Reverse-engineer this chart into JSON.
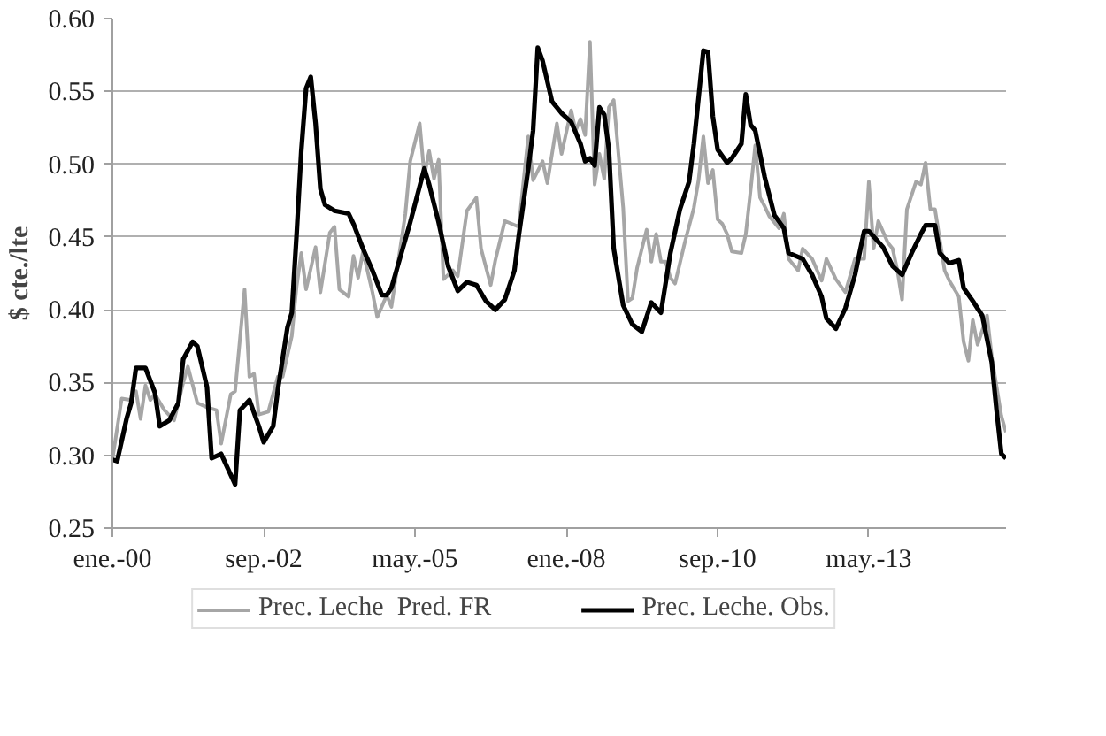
{
  "chart_data": {
    "type": "line",
    "ylabel": "$ cte./lte",
    "xlim": [
      "2000-01",
      "2015-10"
    ],
    "xticks": [
      {
        "value": "2000-01",
        "label": "ene.-00"
      },
      {
        "value": "2002-09",
        "label": "sep.-02"
      },
      {
        "value": "2005-05",
        "label": "may.-05"
      },
      {
        "value": "2008-01",
        "label": "ene.-08"
      },
      {
        "value": "2010-09",
        "label": "sep.-10"
      },
      {
        "value": "2013-05",
        "label": "may.-13"
      }
    ],
    "ylim": [
      0.25,
      0.6
    ],
    "yticks": [
      {
        "value": 0.25,
        "label": "0.25"
      },
      {
        "value": 0.3,
        "label": "0.30"
      },
      {
        "value": 0.35,
        "label": "0.35"
      },
      {
        "value": 0.4,
        "label": "0.40"
      },
      {
        "value": 0.45,
        "label": "0.45"
      },
      {
        "value": 0.5,
        "label": "0.50"
      },
      {
        "value": 0.55,
        "label": "0.55"
      },
      {
        "value": 0.6,
        "label": "0.60"
      }
    ],
    "grid": "y",
    "legend": "bottom",
    "series": [
      {
        "name": "Prec. Leche  Pred. FR",
        "color": "#a6a6a6",
        "x": [
          "2000-01",
          "2000-03",
          "2000-05",
          "2000-06",
          "2000-07",
          "2000-08",
          "2000-09",
          "2000-10",
          "2000-12",
          "2001-02",
          "2001-04",
          "2001-05",
          "2001-07",
          "2001-09",
          "2001-11",
          "2001-12",
          "2002-02",
          "2002-03",
          "2002-05",
          "2002-06",
          "2002-07",
          "2002-08",
          "2002-10",
          "2002-12",
          "2003-01",
          "2003-03",
          "2003-04",
          "2003-05",
          "2003-06",
          "2003-08",
          "2003-09",
          "2003-11",
          "2003-12",
          "2004-01",
          "2004-03",
          "2004-04",
          "2004-05",
          "2004-06",
          "2004-08",
          "2004-09",
          "2004-11",
          "2004-12",
          "2005-03",
          "2005-04",
          "2005-06",
          "2005-07",
          "2005-08",
          "2005-09",
          "2005-10",
          "2005-11",
          "2006-01",
          "2006-02",
          "2006-04",
          "2006-06",
          "2006-07",
          "2006-09",
          "2006-10",
          "2006-12",
          "2007-03",
          "2007-04",
          "2007-05",
          "2007-06",
          "2007-08",
          "2007-09",
          "2007-11",
          "2007-12",
          "2008-02",
          "2008-03",
          "2008-04",
          "2008-05",
          "2008-06",
          "2008-07",
          "2008-08",
          "2008-09",
          "2008-10",
          "2008-11",
          "2009-01",
          "2009-02",
          "2009-03",
          "2009-04",
          "2009-06",
          "2009-07",
          "2009-08",
          "2009-09",
          "2009-10",
          "2009-11",
          "2009-12",
          "2010-02",
          "2010-04",
          "2010-05",
          "2010-06",
          "2010-07",
          "2010-08",
          "2010-09",
          "2010-10",
          "2010-11",
          "2010-12",
          "2011-02",
          "2011-03",
          "2011-04",
          "2011-05",
          "2011-06",
          "2011-07",
          "2011-08",
          "2011-10",
          "2011-11",
          "2011-12",
          "2012-02",
          "2012-03",
          "2012-05",
          "2012-07",
          "2012-08",
          "2012-10",
          "2012-12",
          "2013-02",
          "2013-04",
          "2013-05",
          "2013-06",
          "2013-07",
          "2013-09",
          "2013-10",
          "2013-11",
          "2013-12",
          "2014-01",
          "2014-03",
          "2014-04",
          "2014-05",
          "2014-06",
          "2014-07",
          "2014-09",
          "2014-10",
          "2014-12",
          "2015-01",
          "2015-02",
          "2015-03",
          "2015-04",
          "2015-06",
          "2015-07",
          "2015-09",
          "2015-10"
        ],
        "values": [
          0.297,
          0.339,
          0.338,
          0.344,
          0.325,
          0.348,
          0.338,
          0.342,
          0.331,
          0.324,
          0.35,
          0.361,
          0.336,
          0.333,
          0.331,
          0.308,
          0.342,
          0.344,
          0.414,
          0.354,
          0.356,
          0.328,
          0.33,
          0.354,
          0.354,
          0.382,
          0.416,
          0.439,
          0.414,
          0.443,
          0.412,
          0.453,
          0.457,
          0.414,
          0.409,
          0.437,
          0.422,
          0.44,
          0.412,
          0.395,
          0.41,
          0.402,
          0.466,
          0.502,
          0.528,
          0.492,
          0.509,
          0.49,
          0.503,
          0.421,
          0.427,
          0.423,
          0.468,
          0.477,
          0.442,
          0.417,
          0.434,
          0.461,
          0.457,
          0.489,
          0.519,
          0.489,
          0.502,
          0.487,
          0.528,
          0.507,
          0.537,
          0.523,
          0.531,
          0.52,
          0.584,
          0.486,
          0.507,
          0.49,
          0.539,
          0.544,
          0.47,
          0.406,
          0.408,
          0.429,
          0.455,
          0.433,
          0.452,
          0.433,
          0.433,
          0.422,
          0.418,
          0.446,
          0.47,
          0.489,
          0.519,
          0.487,
          0.496,
          0.462,
          0.459,
          0.452,
          0.44,
          0.439,
          0.452,
          0.482,
          0.513,
          0.477,
          0.471,
          0.464,
          0.456,
          0.466,
          0.435,
          0.427,
          0.442,
          0.435,
          0.42,
          0.435,
          0.421,
          0.412,
          0.435,
          0.435,
          0.488,
          0.442,
          0.461,
          0.446,
          0.442,
          0.427,
          0.407,
          0.469,
          0.488,
          0.486,
          0.501,
          0.469,
          0.469,
          0.427,
          0.42,
          0.409,
          0.378,
          0.365,
          0.393,
          0.376,
          0.396,
          0.368,
          0.327,
          0.316
        ]
      },
      {
        "name": "Prec. Leche. Obs.",
        "color": "#000000",
        "x": [
          "2000-01",
          "2000-02",
          "2000-04",
          "2000-05",
          "2000-06",
          "2000-08",
          "2000-10",
          "2000-11",
          "2001-01",
          "2001-03",
          "2001-04",
          "2001-06",
          "2001-07",
          "2001-09",
          "2001-10",
          "2001-12",
          "2002-03",
          "2002-04",
          "2002-06",
          "2002-08",
          "2002-09",
          "2002-11",
          "2002-12",
          "2003-02",
          "2003-03",
          "2003-04",
          "2003-05",
          "2003-06",
          "2003-07",
          "2003-08",
          "2003-09",
          "2003-10",
          "2003-12",
          "2004-03",
          "2004-04",
          "2004-06",
          "2004-08",
          "2004-10",
          "2004-11",
          "2004-12",
          "2005-02",
          "2005-04",
          "2005-07",
          "2005-08",
          "2005-10",
          "2005-12",
          "2006-02",
          "2006-04",
          "2006-06",
          "2006-08",
          "2006-10",
          "2006-12",
          "2007-02",
          "2007-03",
          "2007-05",
          "2007-06",
          "2007-07",
          "2007-08",
          "2007-10",
          "2007-12",
          "2008-02",
          "2008-04",
          "2008-05",
          "2008-06",
          "2008-07",
          "2008-08",
          "2008-09",
          "2008-10",
          "2008-11",
          "2009-01",
          "2009-03",
          "2009-05",
          "2009-07",
          "2009-09",
          "2009-11",
          "2010-01",
          "2010-03",
          "2010-04",
          "2010-06",
          "2010-07",
          "2010-08",
          "2010-09",
          "2010-11",
          "2010-12",
          "2011-02",
          "2011-03",
          "2011-04",
          "2011-05",
          "2011-07",
          "2011-09",
          "2011-11",
          "2011-12",
          "2012-03",
          "2012-05",
          "2012-07",
          "2012-08",
          "2012-10",
          "2012-12",
          "2013-02",
          "2013-04",
          "2013-05",
          "2013-08",
          "2013-10",
          "2013-12",
          "2014-02",
          "2014-04",
          "2014-05",
          "2014-07",
          "2014-08",
          "2014-10",
          "2014-12",
          "2015-01",
          "2015-03",
          "2015-05",
          "2015-07",
          "2015-08",
          "2015-09",
          "2015-10"
        ],
        "values": [
          0.297,
          0.296,
          0.325,
          0.336,
          0.36,
          0.36,
          0.343,
          0.32,
          0.324,
          0.336,
          0.366,
          0.378,
          0.375,
          0.347,
          0.298,
          0.301,
          0.28,
          0.331,
          0.338,
          0.32,
          0.309,
          0.32,
          0.345,
          0.388,
          0.398,
          0.452,
          0.509,
          0.552,
          0.56,
          0.528,
          0.483,
          0.472,
          0.468,
          0.466,
          0.459,
          0.442,
          0.427,
          0.41,
          0.41,
          0.415,
          0.438,
          0.46,
          0.497,
          0.486,
          0.46,
          0.43,
          0.413,
          0.419,
          0.417,
          0.406,
          0.4,
          0.407,
          0.427,
          0.451,
          0.497,
          0.523,
          0.58,
          0.571,
          0.543,
          0.535,
          0.529,
          0.514,
          0.502,
          0.504,
          0.499,
          0.539,
          0.534,
          0.51,
          0.442,
          0.403,
          0.39,
          0.385,
          0.405,
          0.398,
          0.439,
          0.469,
          0.488,
          0.514,
          0.578,
          0.577,
          0.533,
          0.51,
          0.501,
          0.504,
          0.514,
          0.548,
          0.527,
          0.523,
          0.491,
          0.465,
          0.456,
          0.439,
          0.435,
          0.424,
          0.409,
          0.394,
          0.387,
          0.401,
          0.424,
          0.454,
          0.454,
          0.443,
          0.43,
          0.424,
          0.439,
          0.452,
          0.458,
          0.458,
          0.439,
          0.432,
          0.434,
          0.415,
          0.406,
          0.396,
          0.364,
          0.331,
          0.301,
          0.298
        ]
      }
    ]
  }
}
